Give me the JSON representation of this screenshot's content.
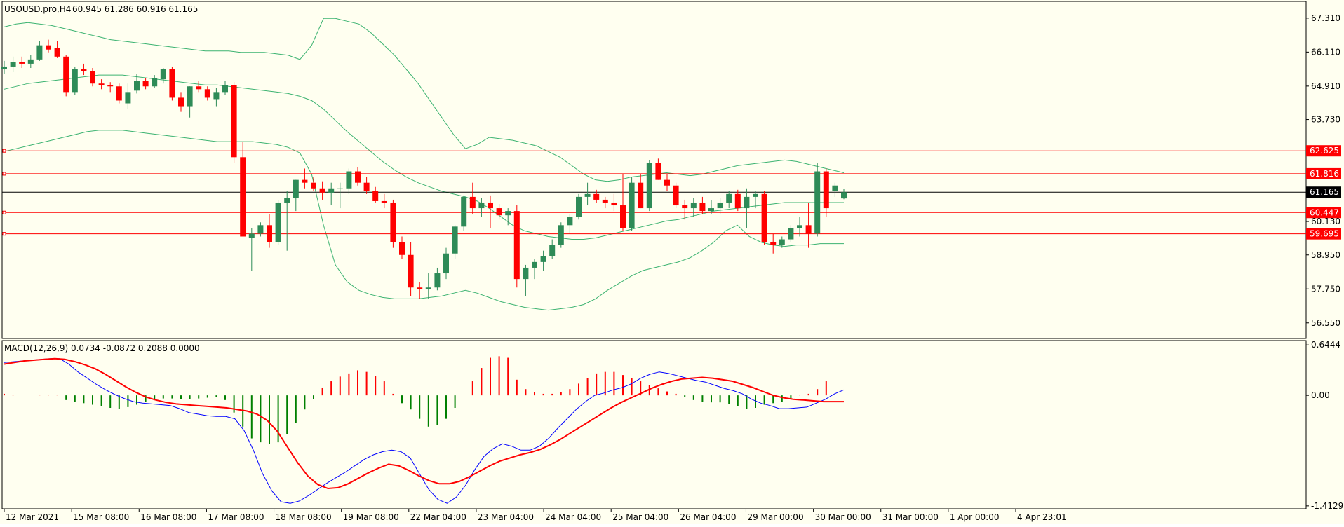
{
  "colors": {
    "background": "#fffff0",
    "frame": "#000000",
    "bull": "#2e8b57",
    "bear": "#ff0000",
    "bands": "#3cb371",
    "levels": "#ff0000",
    "macd_line": "#0000ff",
    "signal_line": "#ff0000"
  },
  "chart_data": [
    {
      "type": "candlestick",
      "title": "USOUSD.pro,H4",
      "ohlc_header": "60.945 61.286 60.916 61.165",
      "price_axis_labels": [
        "67.310",
        "66.110",
        "64.910",
        "63.730",
        "62.625",
        "61.816",
        "61.165",
        "60.447",
        "60.130",
        "59.695",
        "58.950",
        "57.750",
        "56.550"
      ],
      "ylim": [
        56.0,
        67.9
      ],
      "current_price": "61.165",
      "horizontal_levels": [
        62.625,
        61.816,
        60.447,
        59.695
      ],
      "candles": [
        [
          65.5,
          65.8,
          65.35,
          65.6
        ],
        [
          65.6,
          65.95,
          65.4,
          65.75
        ],
        [
          65.75,
          65.95,
          65.55,
          65.7
        ],
        [
          65.7,
          66.0,
          65.55,
          65.85
        ],
        [
          65.85,
          66.5,
          65.8,
          66.35
        ],
        [
          66.35,
          66.55,
          66.1,
          66.2
        ],
        [
          66.25,
          66.5,
          65.9,
          65.95
        ],
        [
          65.95,
          66.0,
          64.55,
          64.7
        ],
        [
          64.7,
          65.6,
          64.6,
          65.5
        ],
        [
          65.5,
          65.7,
          65.3,
          65.45
        ],
        [
          65.45,
          65.55,
          64.9,
          65.0
        ],
        [
          65.0,
          65.15,
          64.8,
          64.95
        ],
        [
          64.95,
          65.05,
          64.7,
          64.9
        ],
        [
          64.9,
          65.0,
          64.3,
          64.4
        ],
        [
          64.3,
          65.0,
          64.1,
          64.7
        ],
        [
          64.75,
          65.35,
          64.65,
          65.1
        ],
        [
          65.1,
          65.2,
          64.8,
          64.9
        ],
        [
          64.9,
          65.3,
          64.85,
          65.2
        ],
        [
          65.15,
          65.55,
          65.0,
          65.5
        ],
        [
          65.5,
          65.6,
          64.4,
          64.5
        ],
        [
          64.5,
          64.7,
          64.0,
          64.2
        ],
        [
          64.2,
          64.9,
          63.8,
          64.9
        ],
        [
          64.9,
          65.1,
          64.7,
          64.8
        ],
        [
          64.8,
          64.9,
          64.4,
          64.5
        ],
        [
          64.45,
          64.85,
          64.2,
          64.7
        ],
        [
          64.7,
          65.1,
          64.6,
          64.95
        ],
        [
          64.95,
          65.05,
          62.2,
          62.4
        ],
        [
          62.4,
          62.95,
          59.6,
          59.6
        ],
        [
          59.55,
          59.9,
          58.4,
          59.7
        ],
        [
          59.7,
          60.1,
          59.6,
          60.0
        ],
        [
          60.0,
          60.4,
          59.2,
          59.4
        ],
        [
          59.4,
          60.9,
          59.3,
          60.8
        ],
        [
          60.8,
          61.2,
          59.1,
          60.95
        ],
        [
          60.95,
          61.6,
          60.5,
          61.6
        ],
        [
          61.6,
          62.0,
          61.3,
          61.5
        ],
        [
          61.5,
          61.7,
          61.2,
          61.3
        ],
        [
          61.3,
          61.55,
          60.9,
          61.15
        ],
        [
          61.15,
          61.5,
          60.7,
          61.3
        ],
        [
          61.3,
          61.5,
          60.6,
          61.3
        ],
        [
          61.3,
          62.0,
          61.1,
          61.9
        ],
        [
          61.9,
          62.05,
          61.4,
          61.5
        ],
        [
          61.5,
          61.7,
          61.1,
          61.2
        ],
        [
          61.2,
          61.35,
          60.8,
          60.85
        ],
        [
          60.85,
          61.1,
          60.6,
          60.8
        ],
        [
          60.8,
          60.9,
          59.2,
          59.4
        ],
        [
          59.4,
          59.6,
          58.8,
          58.95
        ],
        [
          58.95,
          59.4,
          57.5,
          57.8
        ],
        [
          57.8,
          58.0,
          57.4,
          57.75
        ],
        [
          57.75,
          58.3,
          57.4,
          57.8
        ],
        [
          57.8,
          58.5,
          57.7,
          58.3
        ],
        [
          58.3,
          59.2,
          58.1,
          59.0
        ],
        [
          59.0,
          60.0,
          58.8,
          59.95
        ],
        [
          59.95,
          61.05,
          59.8,
          61.0
        ],
        [
          61.0,
          61.5,
          60.4,
          60.6
        ],
        [
          60.6,
          60.95,
          60.3,
          60.8
        ],
        [
          60.8,
          61.05,
          59.9,
          60.6
        ],
        [
          60.6,
          60.75,
          60.2,
          60.35
        ],
        [
          60.35,
          60.6,
          60.0,
          60.5
        ],
        [
          60.5,
          60.7,
          57.8,
          58.1
        ],
        [
          58.1,
          58.6,
          57.5,
          58.5
        ],
        [
          58.5,
          58.8,
          58.1,
          58.7
        ],
        [
          58.7,
          59.1,
          58.4,
          58.9
        ],
        [
          58.9,
          59.5,
          58.8,
          59.3
        ],
        [
          59.3,
          60.1,
          59.2,
          60.0
        ],
        [
          60.0,
          60.4,
          59.7,
          60.3
        ],
        [
          60.3,
          61.1,
          60.2,
          61.0
        ],
        [
          61.0,
          61.5,
          60.7,
          61.1
        ],
        [
          61.1,
          61.25,
          60.8,
          60.9
        ],
        [
          60.9,
          61.0,
          60.6,
          60.8
        ],
        [
          60.8,
          61.1,
          60.5,
          60.7
        ],
        [
          60.7,
          61.8,
          59.8,
          59.9
        ],
        [
          59.9,
          61.7,
          59.8,
          61.5
        ],
        [
          61.5,
          61.8,
          60.6,
          60.6
        ],
        [
          60.6,
          62.3,
          60.5,
          62.2
        ],
        [
          62.2,
          62.35,
          61.6,
          61.6
        ],
        [
          61.6,
          61.8,
          61.2,
          61.4
        ],
        [
          61.4,
          61.5,
          60.6,
          60.7
        ],
        [
          60.7,
          60.9,
          60.2,
          60.6
        ],
        [
          60.6,
          60.95,
          60.3,
          60.8
        ],
        [
          60.8,
          61.0,
          60.4,
          60.5
        ],
        [
          60.5,
          60.9,
          60.4,
          60.6
        ],
        [
          60.6,
          60.95,
          60.4,
          60.8
        ],
        [
          60.8,
          61.2,
          60.6,
          61.1
        ],
        [
          61.1,
          61.25,
          60.5,
          60.6
        ],
        [
          60.6,
          61.3,
          59.9,
          61.0
        ],
        [
          61.0,
          61.2,
          60.6,
          61.1
        ],
        [
          61.1,
          61.2,
          59.3,
          59.4
        ],
        [
          59.4,
          59.7,
          59.0,
          59.3
        ],
        [
          59.3,
          59.6,
          59.2,
          59.5
        ],
        [
          59.5,
          60.0,
          59.4,
          59.9
        ],
        [
          59.9,
          60.3,
          59.6,
          60.0
        ],
        [
          60.0,
          60.8,
          59.2,
          59.7
        ],
        [
          59.7,
          62.2,
          59.6,
          61.9
        ],
        [
          61.9,
          62.0,
          60.3,
          60.6
        ],
        [
          61.2,
          61.5,
          61.0,
          61.4
        ],
        [
          60.945,
          61.286,
          60.916,
          61.165
        ]
      ],
      "bollinger": {
        "upper": [
          67.0,
          67.1,
          67.15,
          67.1,
          67.05,
          66.95,
          66.85,
          66.75,
          66.65,
          66.55,
          66.5,
          66.45,
          66.4,
          66.35,
          66.3,
          66.25,
          66.2,
          66.15,
          66.15,
          66.15,
          66.1,
          66.1,
          66.1,
          66.05,
          66.0,
          65.85,
          66.35,
          67.3,
          67.3,
          67.2,
          67.1,
          66.8,
          66.4,
          66.0,
          65.5,
          65.0,
          64.4,
          63.8,
          63.2,
          62.7,
          62.85,
          63.1,
          63.05,
          63.0,
          62.9,
          62.8,
          62.6,
          62.4,
          62.1,
          61.8,
          61.6,
          61.55,
          61.6,
          61.7,
          61.75,
          61.8,
          61.85,
          61.8,
          61.75,
          61.8,
          61.9,
          62.0,
          62.1,
          62.15,
          62.2,
          62.25,
          62.3,
          62.25,
          62.15,
          62.05,
          61.95,
          61.85
        ],
        "middle": [
          64.8,
          64.9,
          65.0,
          65.05,
          65.1,
          65.15,
          65.2,
          65.25,
          65.3,
          65.3,
          65.3,
          65.25,
          65.2,
          65.15,
          65.1,
          65.05,
          65.0,
          64.95,
          64.95,
          64.9,
          64.85,
          64.8,
          64.75,
          64.7,
          64.65,
          64.55,
          64.4,
          64.1,
          63.7,
          63.3,
          62.95,
          62.6,
          62.25,
          61.95,
          61.7,
          61.5,
          61.35,
          61.2,
          61.1,
          61.0,
          60.85,
          60.6,
          60.3,
          60.0,
          59.8,
          59.7,
          59.6,
          59.55,
          59.5,
          59.5,
          59.55,
          59.65,
          59.75,
          59.85,
          59.95,
          60.05,
          60.15,
          60.2,
          60.3,
          60.4,
          60.5,
          60.55,
          60.6,
          60.65,
          60.7,
          60.75,
          60.8,
          60.8,
          60.8,
          60.8,
          60.8,
          60.8
        ],
        "lower": [
          62.6,
          62.7,
          62.8,
          62.9,
          63.0,
          63.1,
          63.2,
          63.3,
          63.35,
          63.35,
          63.35,
          63.3,
          63.25,
          63.2,
          63.15,
          63.1,
          63.05,
          63.0,
          62.95,
          62.95,
          62.95,
          62.95,
          62.9,
          62.85,
          62.75,
          62.55,
          61.8,
          60.0,
          58.6,
          58.0,
          57.7,
          57.55,
          57.45,
          57.4,
          57.4,
          57.4,
          57.45,
          57.5,
          57.6,
          57.7,
          57.6,
          57.45,
          57.3,
          57.2,
          57.1,
          57.05,
          57.0,
          57.05,
          57.1,
          57.2,
          57.4,
          57.7,
          57.95,
          58.2,
          58.4,
          58.5,
          58.6,
          58.7,
          58.85,
          59.1,
          59.4,
          59.8,
          60.0,
          59.6,
          59.4,
          59.3,
          59.25,
          59.3,
          59.3,
          59.35,
          59.35,
          59.35
        ]
      },
      "time_labels": [
        "12 Mar 2021",
        "15 Mar 08:00",
        "16 Mar 08:00",
        "17 Mar 08:00",
        "18 Mar 08:00",
        "19 Mar 08:00",
        "22 Mar 04:00",
        "23 Mar 04:00",
        "24 Mar 04:00",
        "25 Mar 04:00",
        "26 Mar 04:00",
        "29 Mar 00:00",
        "30 Mar 00:00",
        "31 Mar 00:00",
        "1 Apr 00:00",
        "4 Apr 23:01"
      ]
    },
    {
      "type": "macd",
      "title": "MACD(12,26,9) 0.0734 -0.0872 0.2088 0.0000",
      "axis_labels": [
        "0.6444",
        "0.00",
        "-1.4129"
      ],
      "ylim": [
        -1.45,
        0.7
      ],
      "macd": [
        0.42,
        0.43,
        0.44,
        0.45,
        0.46,
        0.47,
        0.47,
        0.4,
        0.3,
        0.22,
        0.14,
        0.07,
        0.01,
        -0.04,
        -0.08,
        -0.1,
        -0.11,
        -0.12,
        -0.13,
        -0.17,
        -0.22,
        -0.24,
        -0.26,
        -0.27,
        -0.27,
        -0.3,
        -0.45,
        -0.7,
        -1.0,
        -1.22,
        -1.36,
        -1.38,
        -1.35,
        -1.28,
        -1.2,
        -1.12,
        -1.05,
        -0.98,
        -0.9,
        -0.82,
        -0.76,
        -0.72,
        -0.7,
        -0.72,
        -0.8,
        -1.0,
        -1.2,
        -1.33,
        -1.38,
        -1.3,
        -1.15,
        -0.95,
        -0.78,
        -0.68,
        -0.62,
        -0.65,
        -0.7,
        -0.7,
        -0.65,
        -0.55,
        -0.42,
        -0.3,
        -0.18,
        -0.08,
        0.0,
        0.03,
        0.07,
        0.1,
        0.15,
        0.22,
        0.27,
        0.3,
        0.28,
        0.25,
        0.22,
        0.19,
        0.17,
        0.13,
        0.09,
        0.06,
        0.02,
        -0.05,
        -0.1,
        -0.13,
        -0.17,
        -0.17,
        -0.16,
        -0.15,
        -0.1,
        -0.05,
        0.02,
        0.07
      ],
      "signal": [
        0.4,
        0.42,
        0.44,
        0.45,
        0.46,
        0.47,
        0.46,
        0.43,
        0.39,
        0.34,
        0.27,
        0.19,
        0.11,
        0.04,
        -0.02,
        -0.06,
        -0.09,
        -0.11,
        -0.12,
        -0.13,
        -0.14,
        -0.15,
        -0.16,
        -0.18,
        -0.2,
        -0.24,
        -0.32,
        -0.46,
        -0.66,
        -0.86,
        -1.03,
        -1.14,
        -1.19,
        -1.18,
        -1.13,
        -1.06,
        -0.99,
        -0.93,
        -0.88,
        -0.9,
        -0.96,
        -1.03,
        -1.09,
        -1.13,
        -1.13,
        -1.1,
        -1.04,
        -0.97,
        -0.9,
        -0.84,
        -0.8,
        -0.76,
        -0.73,
        -0.69,
        -0.63,
        -0.56,
        -0.48,
        -0.4,
        -0.32,
        -0.24,
        -0.16,
        -0.09,
        -0.03,
        0.03,
        0.09,
        0.14,
        0.18,
        0.21,
        0.22,
        0.23,
        0.22,
        0.2,
        0.18,
        0.14,
        0.1,
        0.05,
        0.0,
        -0.03,
        -0.05,
        -0.06,
        -0.07,
        -0.08,
        -0.08,
        -0.08
      ],
      "histogram": [
        0.02,
        0.01,
        0.0,
        0.0,
        0.01,
        0.01,
        0.01,
        -0.06,
        -0.08,
        -0.1,
        -0.12,
        -0.14,
        -0.16,
        -0.17,
        -0.15,
        -0.12,
        -0.08,
        -0.05,
        -0.04,
        -0.04,
        -0.05,
        -0.05,
        -0.04,
        -0.03,
        -0.02,
        -0.06,
        -0.22,
        -0.4,
        -0.55,
        -0.6,
        -0.62,
        -0.6,
        -0.5,
        -0.35,
        -0.18,
        -0.05,
        0.1,
        0.18,
        0.24,
        0.28,
        0.32,
        0.3,
        0.25,
        0.18,
        0.02,
        -0.1,
        -0.18,
        -0.3,
        -0.4,
        -0.38,
        -0.3,
        -0.16,
        0.0,
        0.18,
        0.35,
        0.48,
        0.5,
        0.48,
        0.2,
        0.08,
        0.04,
        0.02,
        0.02,
        0.04,
        0.08,
        0.15,
        0.22,
        0.28,
        0.3,
        0.3,
        0.26,
        0.22,
        0.18,
        0.13,
        0.09,
        0.05,
        0.02,
        -0.02,
        -0.06,
        -0.08,
        -0.09,
        -0.09,
        -0.11,
        -0.14,
        -0.17,
        -0.16,
        -0.12,
        -0.1,
        -0.08,
        -0.05,
        0.01,
        0.02,
        0.08,
        0.18
      ]
    }
  ]
}
